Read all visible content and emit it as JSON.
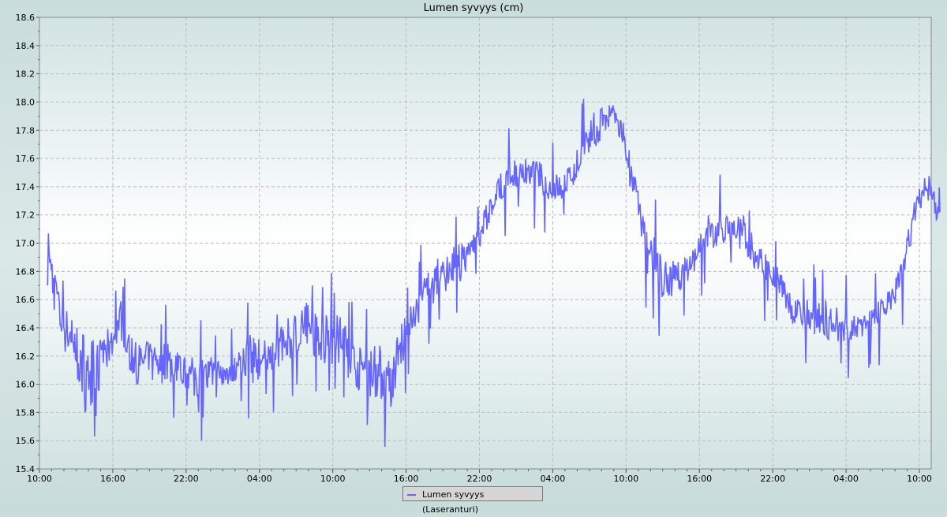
{
  "chart_data": {
    "type": "line",
    "title": "Lumen syvyys (cm)",
    "xlabel": "",
    "ylabel": "",
    "ylim": [
      15.4,
      18.6
    ],
    "yticks": [
      "15.4",
      "15.6",
      "15.8",
      "16.0",
      "16.2",
      "16.4",
      "16.6",
      "16.8",
      "17.0",
      "17.2",
      "17.4",
      "17.6",
      "17.8",
      "18.0",
      "18.2",
      "18.4",
      "18.6"
    ],
    "xticks": [
      "10:00",
      "16:00",
      "22:00",
      "04:00",
      "10:00",
      "16:00",
      "22:00",
      "04:00",
      "10:00",
      "16:00",
      "22:00",
      "04:00",
      "10:00"
    ],
    "grid": true,
    "legend_position": "bottom",
    "series": [
      {
        "name": "Lumen syvyys (Laseranturi)",
        "color": "#6666ff",
        "start_time": "10:40",
        "interval": "1 h",
        "ranges": [
          [
            16.7,
            17.1
          ],
          [
            16.3,
            16.6
          ],
          [
            16.1,
            16.5
          ],
          [
            15.8,
            16.4
          ],
          [
            15.9,
            16.3
          ],
          [
            16.1,
            16.4
          ],
          [
            16.3,
            16.6
          ],
          [
            16.0,
            16.3
          ],
          [
            16.0,
            16.3
          ],
          [
            16.0,
            16.3
          ],
          [
            16.0,
            16.3
          ],
          [
            16.0,
            16.2
          ],
          [
            15.9,
            16.2
          ],
          [
            15.9,
            16.2
          ],
          [
            15.9,
            16.2
          ],
          [
            16.0,
            16.2
          ],
          [
            16.0,
            16.3
          ],
          [
            16.0,
            16.4
          ],
          [
            16.1,
            16.3
          ],
          [
            16.1,
            16.4
          ],
          [
            16.2,
            16.5
          ],
          [
            16.2,
            16.6
          ],
          [
            16.2,
            16.5
          ],
          [
            16.1,
            16.5
          ],
          [
            16.1,
            16.5
          ],
          [
            16.0,
            16.3
          ],
          [
            15.9,
            16.3
          ],
          [
            15.9,
            16.3
          ],
          [
            15.8,
            16.2
          ],
          [
            16.1,
            16.5
          ],
          [
            16.4,
            16.6
          ],
          [
            16.5,
            16.8
          ],
          [
            16.6,
            16.9
          ],
          [
            16.7,
            17.0
          ],
          [
            16.7,
            17.0
          ],
          [
            16.9,
            17.1
          ],
          [
            17.1,
            17.3
          ],
          [
            17.3,
            17.5
          ],
          [
            17.4,
            17.6
          ],
          [
            17.4,
            17.6
          ],
          [
            17.4,
            17.6
          ],
          [
            17.3,
            17.5
          ],
          [
            17.3,
            17.5
          ],
          [
            17.4,
            17.6
          ],
          [
            17.6,
            17.8
          ],
          [
            17.7,
            18.0
          ],
          [
            17.8,
            18.0
          ],
          [
            17.7,
            17.9
          ],
          [
            17.2,
            17.5
          ],
          [
            16.8,
            17.1
          ],
          [
            16.6,
            17.0
          ],
          [
            16.6,
            16.9
          ],
          [
            16.7,
            16.9
          ],
          [
            16.8,
            17.0
          ],
          [
            16.9,
            17.2
          ],
          [
            17.0,
            17.2
          ],
          [
            17.0,
            17.2
          ],
          [
            16.9,
            17.2
          ],
          [
            16.8,
            17.0
          ],
          [
            16.7,
            16.9
          ],
          [
            16.6,
            16.8
          ],
          [
            16.4,
            16.6
          ],
          [
            16.4,
            16.6
          ],
          [
            16.3,
            16.6
          ],
          [
            16.3,
            16.6
          ],
          [
            16.3,
            16.5
          ],
          [
            16.3,
            16.5
          ],
          [
            16.3,
            16.5
          ],
          [
            16.4,
            16.6
          ],
          [
            16.5,
            16.7
          ],
          [
            16.7,
            16.9
          ],
          [
            17.2,
            17.4
          ],
          [
            17.3,
            17.5
          ],
          [
            17.1,
            17.4
          ]
        ]
      }
    ]
  },
  "legend": {
    "label": "Lumen syvyys (Laseranturi)"
  }
}
